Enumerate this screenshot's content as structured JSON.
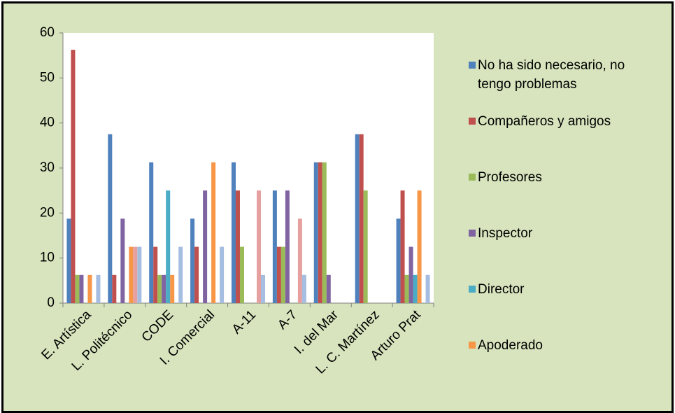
{
  "chart_data": {
    "type": "bar",
    "categories": [
      "E. Artística",
      "L. Politécnico",
      "CODE",
      "I. Comercial",
      "A-11",
      "A-7",
      "I. del Mar",
      "L. C. Martínez",
      "Arturo Prat"
    ],
    "series": [
      {
        "name": "No ha sido necesario, no tengo problemas",
        "color": "#4f81bd",
        "values": [
          18.75,
          37.5,
          31.25,
          18.75,
          31.25,
          25,
          31.25,
          37.5,
          18.75
        ]
      },
      {
        "name": "Compañeros y amigos",
        "color": "#c0504d",
        "values": [
          56.25,
          6.25,
          12.5,
          12.5,
          25,
          12.5,
          31.25,
          37.5,
          25
        ]
      },
      {
        "name": "Profesores",
        "color": "#9bbb59",
        "values": [
          6.25,
          0,
          6.25,
          0,
          12.5,
          12.5,
          31.25,
          25,
          6.25
        ]
      },
      {
        "name": "Inspector",
        "color": "#8064a2",
        "values": [
          6.25,
          18.75,
          6.25,
          25,
          0,
          25,
          6.25,
          0,
          12.5
        ]
      },
      {
        "name": "Director",
        "color": "#4bacc6",
        "values": [
          0,
          0,
          25,
          0,
          0,
          0,
          0,
          0,
          6.25
        ]
      },
      {
        "name": "Apoderado",
        "color": "#f79646",
        "values": [
          6.25,
          12.5,
          6.25,
          31.25,
          0,
          0,
          0,
          0,
          25
        ]
      },
      {
        "color": "#e6a0a0",
        "values": [
          0,
          12.5,
          0,
          0,
          25,
          18.75,
          0,
          0,
          0
        ]
      },
      {
        "color": "#a5bde0",
        "values": [
          6.25,
          12.5,
          12.5,
          12.5,
          6.25,
          6.25,
          0,
          0,
          6.25
        ]
      }
    ],
    "ylim": [
      0,
      60
    ],
    "yticks": [
      0,
      10,
      20,
      30,
      40,
      50,
      60
    ],
    "legend": "right"
  }
}
